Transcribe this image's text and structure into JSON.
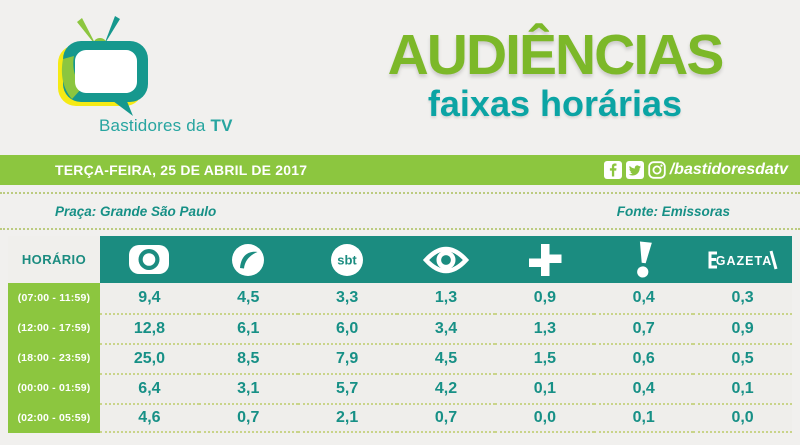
{
  "brand": {
    "name_regular": "Bastidores da",
    "name_bold": "TV"
  },
  "header": {
    "title": "AUDIÊNCIAS",
    "subtitle": "faixas horárias"
  },
  "date_bar": {
    "date": "TERÇA-FEIRA, 25 DE ABRIL DE 2017",
    "handle": "/bastidoresdatv"
  },
  "meta": {
    "left": "Praça: Grande São Paulo",
    "right": "Fonte: Emissoras"
  },
  "table": {
    "horario_label": "HORÁRIO",
    "networks": [
      {
        "name": "Globo"
      },
      {
        "name": "Record"
      },
      {
        "name": "SBT"
      },
      {
        "name": "Band"
      },
      {
        "name": "TV Cultura"
      },
      {
        "name": "RedeTV!"
      },
      {
        "name": "TV Gazeta"
      }
    ],
    "gazeta_text": "GAZETA",
    "sbt_text": "sbt",
    "rows": [
      {
        "time": "(07:00 - 11:59)",
        "values": [
          "9,4",
          "4,5",
          "3,3",
          "1,3",
          "0,9",
          "0,4",
          "0,3"
        ]
      },
      {
        "time": "(12:00 - 17:59)",
        "values": [
          "12,8",
          "6,1",
          "6,0",
          "3,4",
          "1,3",
          "0,7",
          "0,9"
        ]
      },
      {
        "time": "(18:00 - 23:59)",
        "values": [
          "25,0",
          "8,5",
          "7,9",
          "4,5",
          "1,5",
          "0,6",
          "0,5"
        ]
      },
      {
        "time": "(00:00 - 01:59)",
        "values": [
          "6,4",
          "3,1",
          "5,7",
          "4,2",
          "0,1",
          "0,4",
          "0,1"
        ]
      },
      {
        "time": "(02:00 - 05:59)",
        "values": [
          "4,6",
          "0,7",
          "2,1",
          "0,7",
          "0,0",
          "0,1",
          "0,0"
        ]
      }
    ]
  },
  "chart_data": {
    "type": "table",
    "title": "AUDIÊNCIAS — faixas horárias",
    "date": "TERÇA-FEIRA, 25 DE ABRIL DE 2017",
    "market": "Grande São Paulo",
    "source": "Emissoras",
    "columns": [
      "HORÁRIO",
      "Globo",
      "Record",
      "SBT",
      "Band",
      "TV Cultura",
      "RedeTV!",
      "TV Gazeta"
    ],
    "rows": [
      [
        "(07:00 - 11:59)",
        9.4,
        4.5,
        3.3,
        1.3,
        0.9,
        0.4,
        0.3
      ],
      [
        "(12:00 - 17:59)",
        12.8,
        6.1,
        6.0,
        3.4,
        1.3,
        0.7,
        0.9
      ],
      [
        "(18:00 - 23:59)",
        25.0,
        8.5,
        7.9,
        4.5,
        1.5,
        0.6,
        0.5
      ],
      [
        "(00:00 - 01:59)",
        6.4,
        3.1,
        5.7,
        4.2,
        0.1,
        0.4,
        0.1
      ],
      [
        "(02:00 - 05:59)",
        4.6,
        0.7,
        2.1,
        0.7,
        0.0,
        0.1,
        0.0
      ]
    ]
  },
  "colors": {
    "green": "#8cc63f",
    "title_green": "#7cb829",
    "teal_band": "#1b8c80",
    "teal_text": "#179086",
    "subtitle_teal": "#0ba4a4",
    "background": "#f1f0ee",
    "dotted": "#bccb7f"
  }
}
